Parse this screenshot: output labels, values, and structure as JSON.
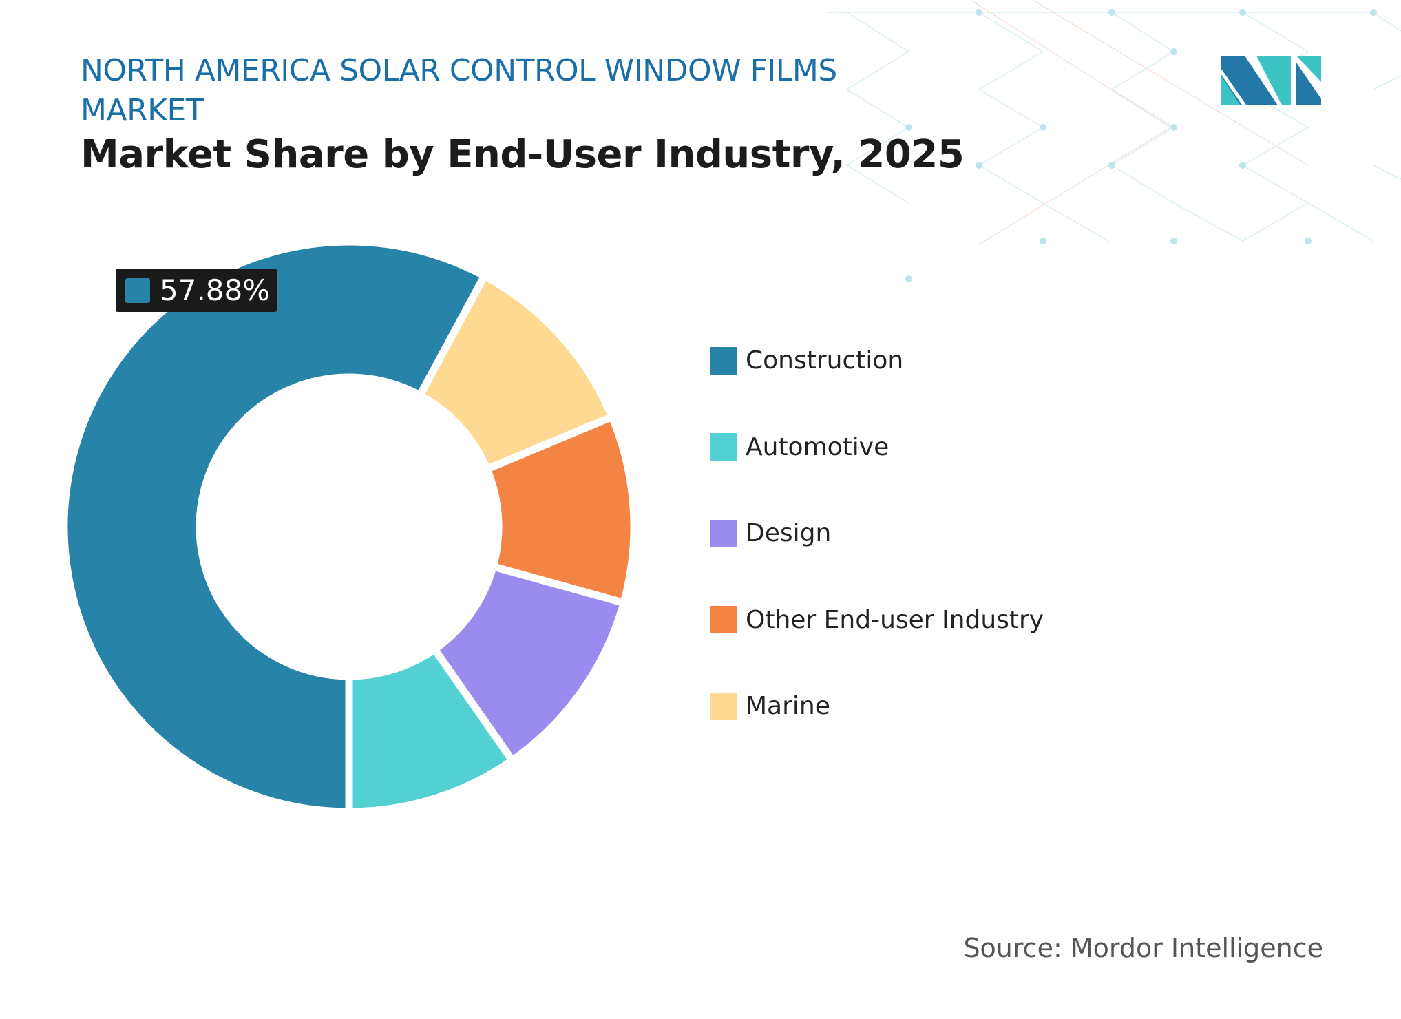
{
  "header": {
    "title": "NORTH AMERICA SOLAR CONTROL WINDOW FILMS MARKET",
    "subtitle": "Market Share by End-User Industry, 2025"
  },
  "colors": {
    "title": "#1a6fa8",
    "logo_dark": "#2378a8",
    "logo_light": "#3cc3c3"
  },
  "chart_data": {
    "type": "pie",
    "variant": "donut",
    "title": "Market Share by End-User Industry, 2025",
    "unit": "%",
    "categories": [
      "Construction",
      "Automotive",
      "Design",
      "Other End-user Industry",
      "Marine"
    ],
    "values": [
      57.88,
      9.7,
      11.0,
      10.6,
      10.82
    ],
    "colors": [
      "#2783a8",
      "#52d0d2",
      "#9a8bef",
      "#f38443",
      "#fed991"
    ],
    "data_labels": [
      {
        "category": "Construction",
        "text": "57.88%"
      }
    ],
    "legend_position": "right"
  },
  "source": "Source: Mordor Intelligence"
}
